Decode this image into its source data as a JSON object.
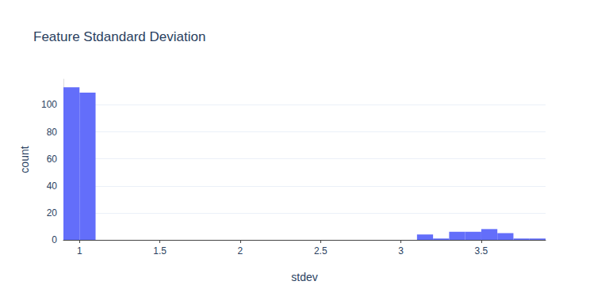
{
  "chart_data": {
    "type": "histogram",
    "title": "Feature Stdandard Deviation",
    "x_label": "stdev",
    "y_label": "count",
    "bins": [
      0.9,
      1.0,
      1.1,
      1.2,
      1.3,
      1.4,
      1.5,
      1.6,
      1.7,
      1.8,
      1.9,
      2.0,
      2.1,
      2.2,
      2.3,
      2.4,
      2.5,
      2.6,
      2.7,
      2.8,
      2.9,
      3.0,
      3.1,
      3.2,
      3.3,
      3.4,
      3.5,
      3.6,
      3.7,
      3.8,
      3.9
    ],
    "values": [
      113,
      109,
      0,
      0,
      0,
      0,
      0,
      0,
      0,
      0,
      0,
      0,
      0,
      0,
      0,
      0,
      0,
      0,
      0,
      0,
      0,
      0,
      4,
      1,
      6,
      6,
      8,
      5,
      1,
      1
    ],
    "color": "#636efa",
    "xlim": [
      0.9,
      3.9
    ],
    "xticks": [
      1,
      1.5,
      2,
      2.5,
      3,
      3.5
    ],
    "ylim": [
      0,
      119
    ],
    "yticks": [
      0,
      20,
      40,
      60,
      80,
      100
    ],
    "grid": true
  }
}
